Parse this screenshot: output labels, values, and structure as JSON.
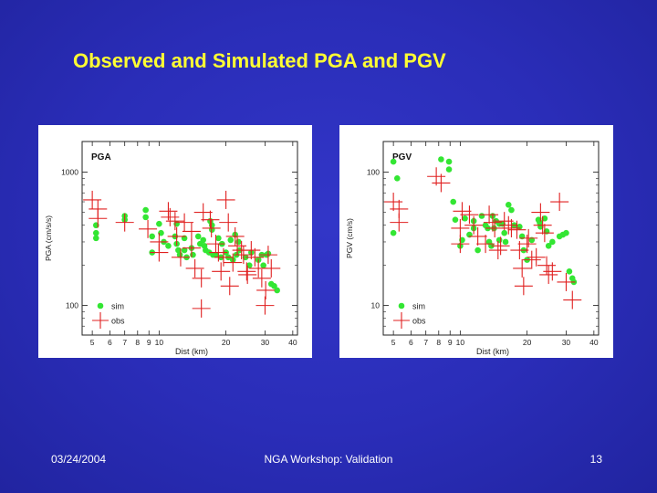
{
  "slide": {
    "title": "Observed and Simulated PGA and PGV",
    "footer_left": "03/24/2004",
    "footer_center": "NGA Workshop: Validation",
    "footer_right": "13"
  },
  "colors": {
    "sim": "#33e633",
    "obs": "#e02020",
    "title": "#ffff33",
    "axis": "#222222"
  },
  "chart_data": [
    {
      "type": "scatter",
      "title": "PGA",
      "xlabel": "Dist (km)",
      "ylabel": "PGA (cm/s/s)",
      "xscale": "log",
      "yscale": "log",
      "xlim": [
        4.5,
        42
      ],
      "ylim": [
        60,
        1700
      ],
      "x_ticks": [
        5,
        6,
        7,
        8,
        9,
        10,
        20,
        30,
        40
      ],
      "y_ticks": [
        100,
        1000
      ],
      "legend": {
        "position": "bottom-left",
        "sim": "sim",
        "obs": "obs"
      },
      "series": [
        {
          "name": "sim",
          "marker": "circle",
          "points": [
            [
              5.2,
              400
            ],
            [
              5.2,
              350
            ],
            [
              5.2,
              320
            ],
            [
              7.0,
              470
            ],
            [
              7.0,
              440
            ],
            [
              8.7,
              520
            ],
            [
              8.7,
              460
            ],
            [
              9.3,
              330
            ],
            [
              9.3,
              250
            ],
            [
              10.0,
              410
            ],
            [
              10.2,
              350
            ],
            [
              10.5,
              300
            ],
            [
              11.0,
              280
            ],
            [
              11.8,
              330
            ],
            [
              12.0,
              410
            ],
            [
              12.0,
              290
            ],
            [
              12.2,
              260
            ],
            [
              12.4,
              240
            ],
            [
              13.0,
              320
            ],
            [
              13.0,
              260
            ],
            [
              13.3,
              230
            ],
            [
              14.0,
              270
            ],
            [
              14.2,
              240
            ],
            [
              15.0,
              330
            ],
            [
              15.3,
              290
            ],
            [
              15.8,
              310
            ],
            [
              16.0,
              280
            ],
            [
              16.2,
              260
            ],
            [
              16.8,
              250
            ],
            [
              17.0,
              430
            ],
            [
              17.3,
              400
            ],
            [
              17.3,
              370
            ],
            [
              17.5,
              240
            ],
            [
              18.0,
              240
            ],
            [
              18.5,
              320
            ],
            [
              19.0,
              230
            ],
            [
              19.2,
              290
            ],
            [
              20.0,
              250
            ],
            [
              20.5,
              230
            ],
            [
              21.0,
              310
            ],
            [
              21.5,
              220
            ],
            [
              22.0,
              340
            ],
            [
              22.3,
              240
            ],
            [
              22.8,
              300
            ],
            [
              23.0,
              260
            ],
            [
              24.5,
              230
            ],
            [
              25.5,
              200
            ],
            [
              26.0,
              250
            ],
            [
              28.0,
              220
            ],
            [
              29.0,
              240
            ],
            [
              29.5,
              200
            ],
            [
              30.5,
              240
            ],
            [
              31.0,
              245
            ],
            [
              32.0,
              145
            ],
            [
              33.0,
              140
            ],
            [
              34.0,
              130
            ]
          ]
        },
        {
          "name": "obs",
          "marker": "cross",
          "points": [
            [
              5.0,
              620
            ],
            [
              5.3,
              530
            ],
            [
              5.3,
              450
            ],
            [
              7.0,
              420
            ],
            [
              8.9,
              375
            ],
            [
              10.0,
              300
            ],
            [
              10.0,
              250
            ],
            [
              11.0,
              510
            ],
            [
              11.2,
              460
            ],
            [
              11.8,
              430
            ],
            [
              12.0,
              330
            ],
            [
              12.5,
              230
            ],
            [
              13.0,
              420
            ],
            [
              14.0,
              360
            ],
            [
              14.0,
              270
            ],
            [
              14.5,
              190
            ],
            [
              15.5,
              160
            ],
            [
              15.5,
              95
            ],
            [
              15.8,
              500
            ],
            [
              17.0,
              440
            ],
            [
              17.2,
              380
            ],
            [
              18.0,
              290
            ],
            [
              18.5,
              250
            ],
            [
              19.0,
              180
            ],
            [
              19.5,
              230
            ],
            [
              20.0,
              620
            ],
            [
              20.5,
              420
            ],
            [
              20.8,
              140
            ],
            [
              21.5,
              210
            ],
            [
              22.0,
              330
            ],
            [
              22.5,
              280
            ],
            [
              23.5,
              260
            ],
            [
              24.0,
              240
            ],
            [
              24.8,
              180
            ],
            [
              25.0,
              170
            ],
            [
              26.0,
              260
            ],
            [
              27.0,
              230
            ],
            [
              28.0,
              190
            ],
            [
              29.0,
              160
            ],
            [
              30.0,
              100
            ],
            [
              30.2,
              130
            ],
            [
              31.0,
              240
            ],
            [
              32.0,
              190
            ]
          ]
        }
      ]
    },
    {
      "type": "scatter",
      "title": "PGV",
      "xlabel": "Dist (km)",
      "ylabel": "PGV (cm/s)",
      "xscale": "log",
      "yscale": "log",
      "xlim": [
        4.5,
        42
      ],
      "ylim": [
        6,
        170
      ],
      "x_ticks": [
        5,
        6,
        7,
        8,
        9,
        10,
        20,
        30,
        40
      ],
      "y_ticks": [
        10,
        100
      ],
      "legend": {
        "position": "bottom-left",
        "sim": "sim",
        "obs": "obs"
      },
      "series": [
        {
          "name": "sim",
          "marker": "circle",
          "points": [
            [
              5.0,
              35
            ],
            [
              5.0,
              120
            ],
            [
              5.2,
              90
            ],
            [
              8.2,
              125
            ],
            [
              8.9,
              120
            ],
            [
              8.9,
              105
            ],
            [
              9.3,
              60
            ],
            [
              9.5,
              44
            ],
            [
              10.0,
              28
            ],
            [
              10.2,
              31
            ],
            [
              10.5,
              45
            ],
            [
              11.0,
              34
            ],
            [
              11.5,
              43
            ],
            [
              11.5,
              38
            ],
            [
              12.0,
              26
            ],
            [
              12.5,
              47
            ],
            [
              13.0,
              40
            ],
            [
              13.3,
              38
            ],
            [
              13.5,
              30
            ],
            [
              13.8,
              28
            ],
            [
              14.0,
              47
            ],
            [
              14.2,
              38
            ],
            [
              14.5,
              43
            ],
            [
              15.0,
              41
            ],
            [
              15.0,
              31
            ],
            [
              15.5,
              41
            ],
            [
              15.8,
              35
            ],
            [
              16.0,
              30
            ],
            [
              16.5,
              57
            ],
            [
              17.0,
              52
            ],
            [
              17.5,
              40
            ],
            [
              18.5,
              39
            ],
            [
              19.0,
              33
            ],
            [
              19.3,
              26
            ],
            [
              20.0,
              22
            ],
            [
              21.0,
              31
            ],
            [
              22.5,
              44
            ],
            [
              22.8,
              42
            ],
            [
              23.0,
              39
            ],
            [
              24.0,
              45
            ],
            [
              24.5,
              36
            ],
            [
              25.0,
              28
            ],
            [
              26.0,
              30
            ],
            [
              28.0,
              33
            ],
            [
              29.0,
              34
            ],
            [
              30.0,
              35
            ],
            [
              31.0,
              18
            ],
            [
              32.0,
              16
            ],
            [
              32.5,
              15
            ]
          ]
        },
        {
          "name": "obs",
          "marker": "cross",
          "points": [
            [
              5.0,
              60
            ],
            [
              5.3,
              53
            ],
            [
              5.3,
              42
            ],
            [
              7.8,
              93
            ],
            [
              8.2,
              83
            ],
            [
              10.0,
              38
            ],
            [
              10.0,
              29
            ],
            [
              10.2,
              51
            ],
            [
              11.0,
              48
            ],
            [
              11.5,
              40
            ],
            [
              12.0,
              33
            ],
            [
              13.0,
              29
            ],
            [
              13.5,
              48
            ],
            [
              14.0,
              42
            ],
            [
              14.3,
              38
            ],
            [
              14.8,
              26
            ],
            [
              15.2,
              28
            ],
            [
              15.8,
              43
            ],
            [
              16.5,
              40
            ],
            [
              17.0,
              38
            ],
            [
              18.0,
              37
            ],
            [
              18.5,
              26
            ],
            [
              19.0,
              19
            ],
            [
              19.3,
              14
            ],
            [
              20.0,
              29
            ],
            [
              20.3,
              32
            ],
            [
              21.0,
              22
            ],
            [
              22.0,
              23
            ],
            [
              23.0,
              50
            ],
            [
              23.5,
              40
            ],
            [
              24.0,
              35
            ],
            [
              24.5,
              20
            ],
            [
              25.0,
              17
            ],
            [
              26.0,
              18
            ],
            [
              28.0,
              60
            ],
            [
              30.0,
              15
            ],
            [
              32.0,
              11
            ]
          ]
        }
      ]
    }
  ]
}
